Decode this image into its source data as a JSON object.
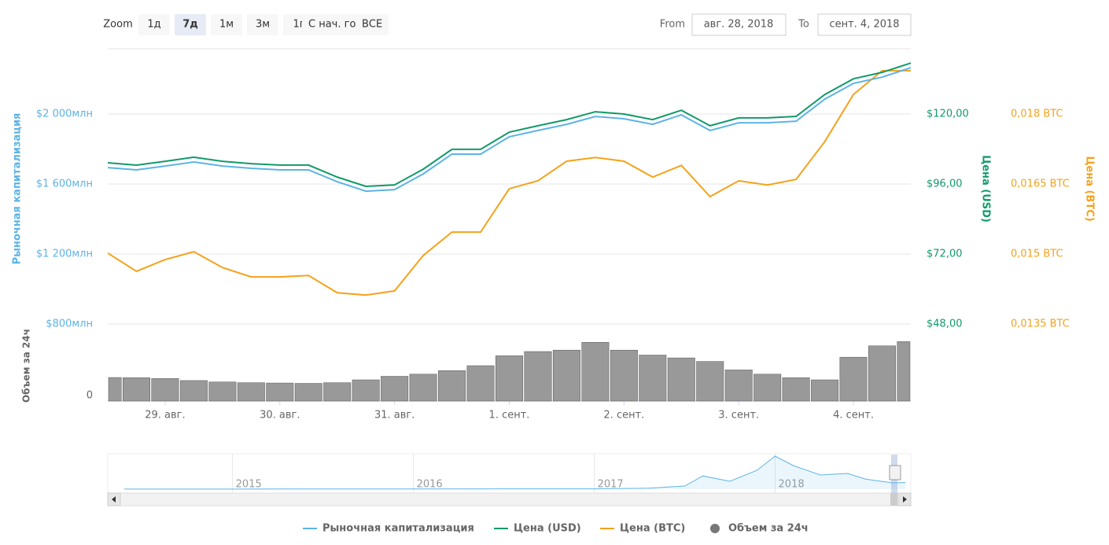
{
  "chart_data": {
    "type": "line",
    "zoom": {
      "label": "Zoom",
      "buttons": [
        "1д",
        "7д",
        "1м",
        "3м",
        "1г",
        "С нач. го",
        "ВСЕ"
      ],
      "selected": 1
    },
    "range": {
      "from_label": "From",
      "from": "авг. 28, 2018",
      "to_label": "To",
      "to": "сент. 4, 2018"
    },
    "x": [
      -0.5,
      -0.25,
      0,
      0.25,
      0.5,
      0.75,
      1,
      1.25,
      1.5,
      1.75,
      2,
      2.25,
      2.5,
      2.75,
      3,
      3.25,
      3.5,
      3.75,
      4,
      4.25,
      4.5,
      4.75,
      5,
      5.25,
      5.5,
      5.75,
      6,
      6.25,
      6.5
    ],
    "xlim": [
      -0.5,
      6.5
    ],
    "xticks": [
      {
        "value": 0,
        "label": "29. авг."
      },
      {
        "value": 1,
        "label": "30. авг."
      },
      {
        "value": 2,
        "label": "31. авг."
      },
      {
        "value": 3,
        "label": "1. сент."
      },
      {
        "value": 4,
        "label": "2. сент."
      },
      {
        "value": 5,
        "label": "3. сент."
      },
      {
        "value": 6,
        "label": "4. сент."
      }
    ],
    "series": [
      {
        "name": "Рыночная капитализация",
        "color": "#5db3e6",
        "axis": "y",
        "values": [
          1694,
          1681,
          1703,
          1726,
          1703,
          1690,
          1681,
          1681,
          1613,
          1559,
          1568,
          1658,
          1771,
          1771,
          1870,
          1906,
          1941,
          1986,
          1973,
          1941,
          1995,
          1906,
          1950,
          1950,
          1959,
          2085,
          2175,
          2211,
          2265
        ]
      },
      {
        "name": "Цена (USD)",
        "color": "#129a6a",
        "axis": "y2",
        "values": [
          103.3,
          102.5,
          103.8,
          105.2,
          103.8,
          103.0,
          102.5,
          102.5,
          98.4,
          95.2,
          95.7,
          101.1,
          107.9,
          107.9,
          113.8,
          116.0,
          118.1,
          120.8,
          120.0,
          118.1,
          121.3,
          116.0,
          118.7,
          118.7,
          119.2,
          126.7,
          132.1,
          134.3,
          137.5
        ]
      },
      {
        "name": "Цена (BTC)",
        "color": "#f5a21b",
        "axis": "y3",
        "values": [
          0.01502,
          0.01463,
          0.01488,
          0.01505,
          0.01471,
          0.01451,
          0.01451,
          0.01454,
          0.01417,
          0.01412,
          0.01421,
          0.01497,
          0.01547,
          0.01547,
          0.0164,
          0.01657,
          0.01699,
          0.01707,
          0.01699,
          0.01665,
          0.0169,
          0.01623,
          0.01657,
          0.01648,
          0.0166,
          0.01741,
          0.01842,
          0.01893,
          0.01893
        ]
      },
      {
        "name": "Объем за 24ч",
        "color": "#777777",
        "axis": "volume",
        "type": "bar",
        "values": [
          333,
          330,
          320,
          290,
          270,
          260,
          255,
          250,
          260,
          300,
          350,
          380,
          430,
          500,
          640,
          700,
          720,
          830,
          720,
          650,
          610,
          560,
          440,
          380,
          330,
          300,
          620,
          780,
          840
        ]
      }
    ],
    "ylabel": "Рыночная капитализация",
    "ylim": [
      800,
      2373
    ],
    "yticks": [
      {
        "value": 800,
        "label": "$800млн"
      },
      {
        "value": 1200,
        "label": "$1 200млн"
      },
      {
        "value": 1600,
        "label": "$1 600млн"
      },
      {
        "value": 2000,
        "label": "$2 000млн"
      }
    ],
    "y2label": "Цена (USD)",
    "y2lim": [
      48,
      142.4
    ],
    "y2ticks": [
      {
        "value": 48,
        "label": "$48,00"
      },
      {
        "value": 72,
        "label": "$72,00"
      },
      {
        "value": 96,
        "label": "$96,00"
      },
      {
        "value": 120,
        "label": "$120,00"
      }
    ],
    "y3label": "Цена (BTC)",
    "y3lim": [
      0.0135,
      0.0194
    ],
    "y3ticks": [
      {
        "value": 0.0135,
        "label": "0,0135 BTC"
      },
      {
        "value": 0.015,
        "label": "0,015 BTC"
      },
      {
        "value": 0.0165,
        "label": "0,0165 BTC"
      },
      {
        "value": 0.018,
        "label": "0,018 BTC"
      }
    ],
    "volume_label": "Объем за 24ч",
    "volume_ylim": [
      0,
      1000
    ],
    "volume_yticks": [
      0
    ],
    "grid": true,
    "navigator": {
      "x": [
        2014.4,
        2015,
        2016,
        2017,
        2017.3,
        2017.5,
        2017.6,
        2017.75,
        2017.9,
        2018.0,
        2018.1,
        2018.25,
        2018.4,
        2018.5,
        2018.65,
        2018.72
      ],
      "values": [
        30,
        40,
        60,
        100,
        300,
        1000,
        4200,
        2500,
        6000,
        10500,
        7500,
        4500,
        5000,
        3200,
        2000,
        2100
      ],
      "xlim": [
        2014.31,
        2018.75
      ],
      "ylim": [
        0,
        11000
      ],
      "xticks": [
        2015,
        2016,
        2017,
        2018
      ],
      "color": "#5db3e6"
    }
  }
}
